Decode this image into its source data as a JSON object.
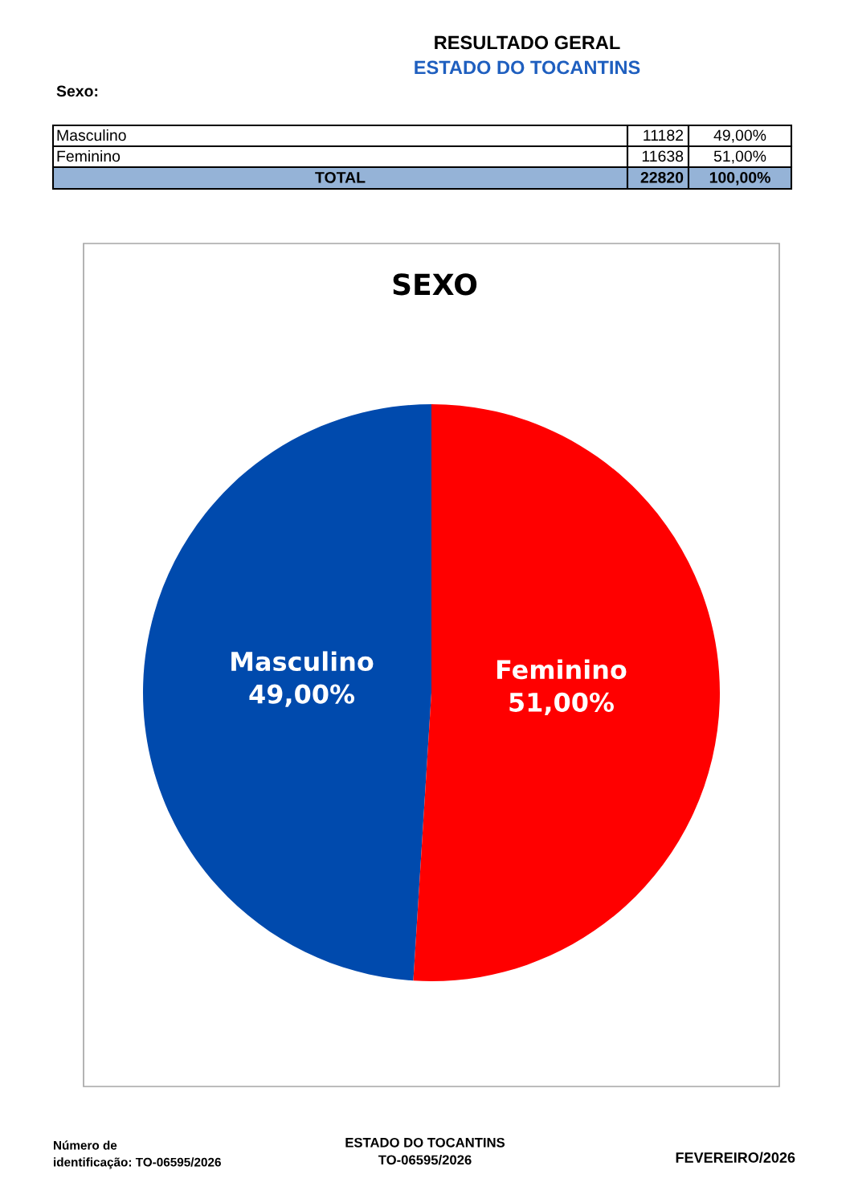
{
  "chart_data": {
    "type": "pie",
    "title": "SEXO",
    "categories": [
      "Masculino",
      "Feminino"
    ],
    "values": [
      49.0,
      51.0
    ],
    "value_labels": [
      "49,00%",
      "51,00%"
    ],
    "colors": [
      "#004aad",
      "#ff0000"
    ],
    "totals": [
      "22820",
      "100,00%"
    ],
    "annotations": [
      "RESULTADO GERAL",
      "ESTADO DO TOCANTINS",
      "Sexo:",
      "TOTAL",
      "11182",
      "11638",
      "Número de\nidentificação: TO-06595/2026",
      "ESTADO DO TOCANTINS\nTO-06595/2026",
      "FEVEREIRO/2026"
    ]
  }
}
